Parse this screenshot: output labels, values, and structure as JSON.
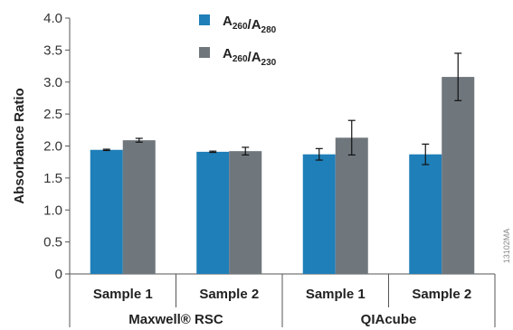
{
  "chart_data": {
    "type": "bar",
    "ylabel": "Absorbance Ratio",
    "ylim": [
      0,
      4.0
    ],
    "yticks": [
      "0",
      "0.5",
      "1.0",
      "1.5",
      "2.0",
      "2.5",
      "3.0",
      "3.5",
      "4.0"
    ],
    "categories": [
      "Sample 1",
      "Sample 2",
      "Sample 1",
      "Sample 2"
    ],
    "groups": [
      {
        "label": "Maxwell® RSC",
        "categories": [
          0,
          1
        ]
      },
      {
        "label": "QIAcube",
        "categories": [
          2,
          3
        ]
      }
    ],
    "series": [
      {
        "name": "A260/A280",
        "name_main": [
          "A",
          "/A"
        ],
        "name_sub": [
          "260",
          "280"
        ],
        "color": "#1f7fb8",
        "values": [
          1.94,
          1.91,
          1.87,
          1.87
        ],
        "errors": [
          0.01,
          0.01,
          0.09,
          0.16
        ]
      },
      {
        "name": "A260/A230",
        "name_main": [
          "A",
          "/A"
        ],
        "name_sub": [
          "260",
          "230"
        ],
        "color": "#6f777d",
        "values": [
          2.09,
          1.92,
          2.13,
          3.08
        ],
        "errors": [
          0.03,
          0.06,
          0.27,
          0.37
        ]
      }
    ],
    "legend_position": "top-center",
    "grid": false,
    "figure_code": "13102MA"
  }
}
